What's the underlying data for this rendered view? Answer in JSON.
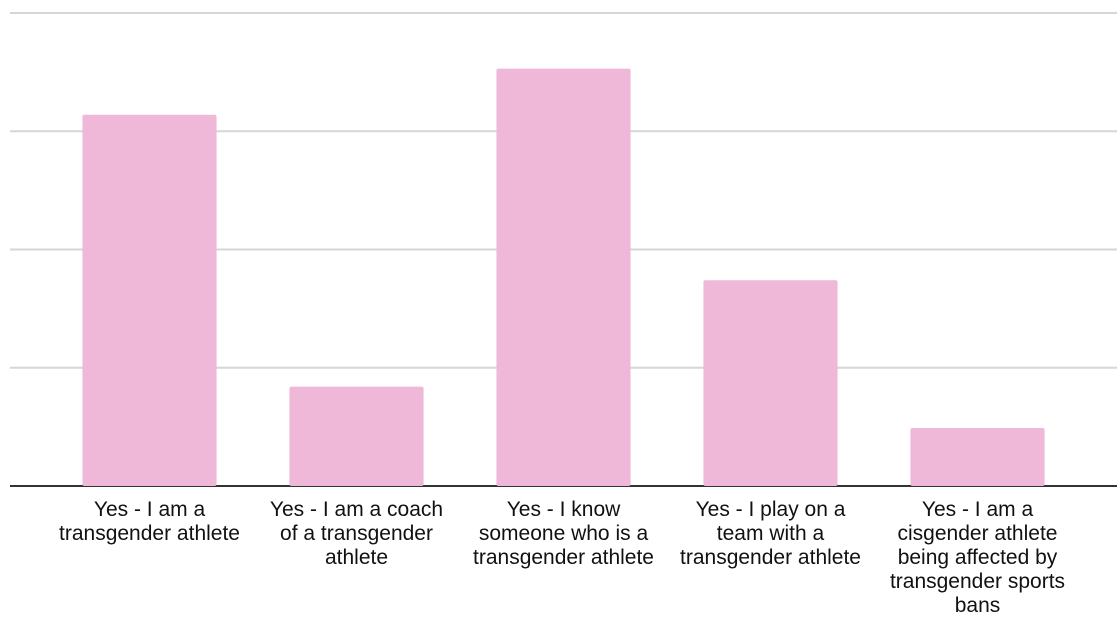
{
  "chart_data": {
    "type": "bar",
    "categories": [
      "Yes - I am a transgender athlete",
      "Yes - I am a coach of a transgender athlete",
      "Yes - I know someone who is a transgender athlete",
      "Yes - I play on a team with a transgender athlete",
      "Yes - I am a cisgender athlete being affected by transgender sports bans"
    ],
    "values": [
      3.14,
      0.84,
      3.53,
      1.74,
      0.49
    ],
    "color": "#f0b8d8",
    "ylim": [
      0,
      4
    ],
    "yticks": [
      0,
      1,
      2,
      3,
      4
    ],
    "grid": true
  }
}
